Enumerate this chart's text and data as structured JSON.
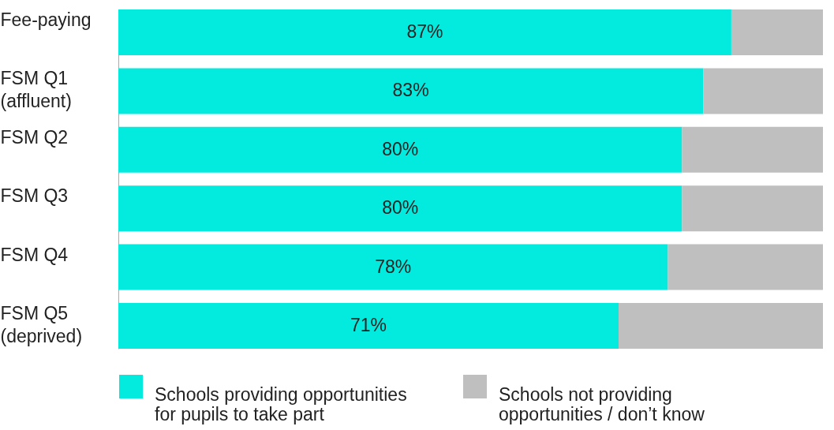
{
  "chart_data": {
    "type": "bar",
    "orientation": "horizontal",
    "stacked": true,
    "legend": "bottom",
    "categories": [
      "Fee-paying",
      "FSM Q1 (affluent)",
      "FSM Q2",
      "FSM Q3",
      "FSM Q4",
      "FSM Q5 (deprived)"
    ],
    "series": [
      {
        "name": "Schools providing opportunities for pupils to take part",
        "color": "#03ebdf",
        "values": [
          87,
          83,
          80,
          80,
          78,
          71
        ],
        "value_labels": [
          "87%",
          "83%",
          "80%",
          "80%",
          "78%",
          "71%"
        ]
      },
      {
        "name": "Schools not providing opportunities / don’t know",
        "color": "#bfbfbf",
        "values": [
          13,
          17,
          20,
          20,
          22,
          29
        ]
      }
    ]
  }
}
